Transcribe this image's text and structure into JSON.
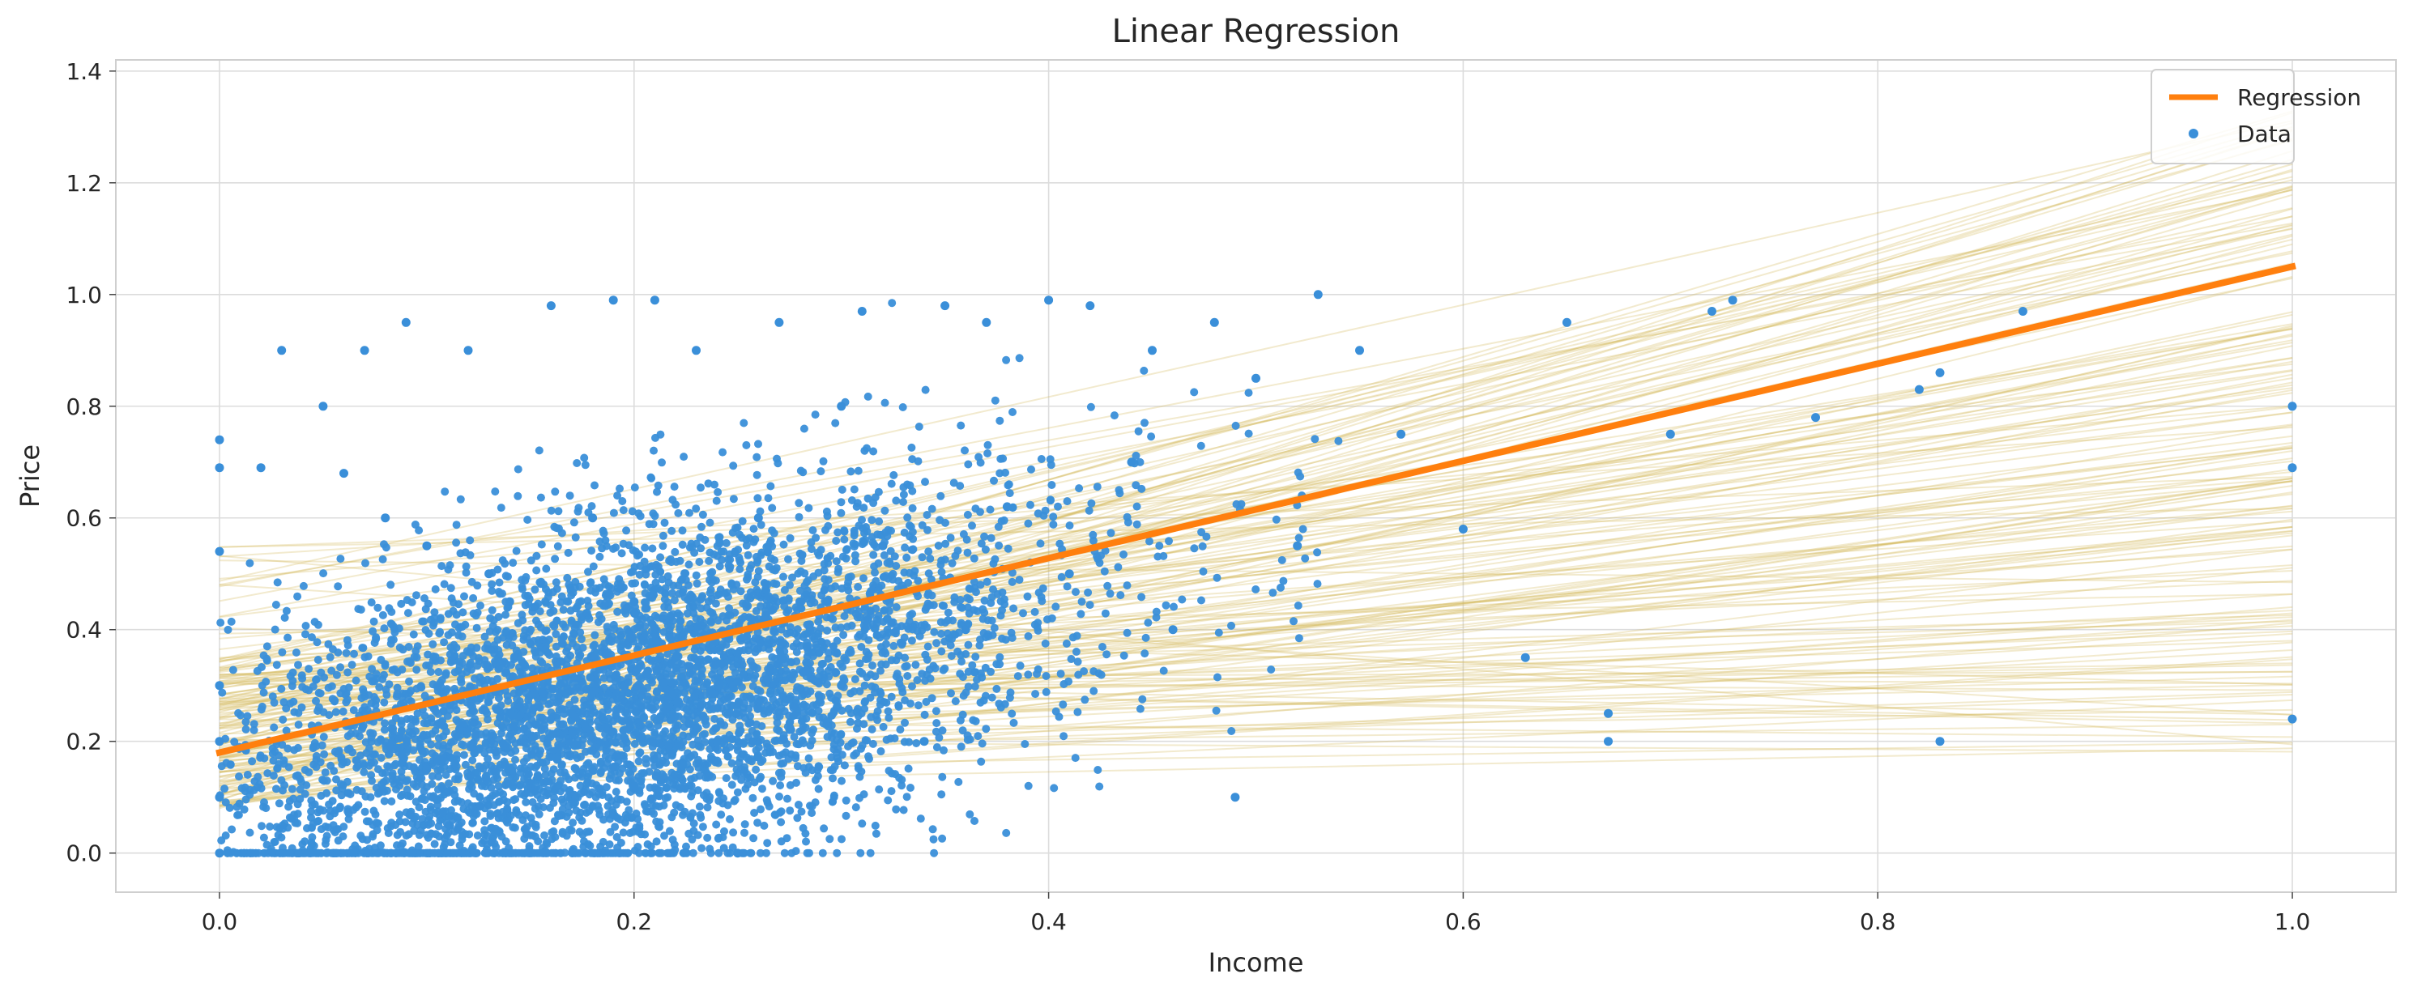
{
  "chart_data": {
    "type": "scatter",
    "title": "Linear Regression",
    "xlabel": "Income",
    "ylabel": "Price",
    "xlim": [
      -0.05,
      1.05
    ],
    "ylim": [
      -0.07,
      1.42
    ],
    "x_ticks": [
      "0.0",
      "0.2",
      "0.4",
      "0.6",
      "0.8",
      "1.0"
    ],
    "y_ticks": [
      "0.0",
      "0.2",
      "0.4",
      "0.6",
      "0.8",
      "1.0",
      "1.2",
      "1.4"
    ],
    "grid": true,
    "legend_placement": "top-right",
    "colors": {
      "data": "#3a8fd9",
      "regression": "#ff7f0e",
      "samples": "#d4b95e",
      "grid": "#dcdcdc",
      "frame": "#cfcfcf"
    },
    "series": [
      {
        "name": "Regression",
        "kind": "line",
        "x": [
          0.0,
          1.0
        ],
        "y": [
          0.18,
          1.05
        ]
      },
      {
        "name": "Data",
        "kind": "scatter",
        "x": [
          0.0,
          0.0,
          0.0,
          0.0,
          0.0,
          0.0,
          0.0,
          0.02,
          0.03,
          0.05,
          0.06,
          0.07,
          0.08,
          0.09,
          0.1,
          0.1,
          0.12,
          0.13,
          0.14,
          0.15,
          0.16,
          0.17,
          0.18,
          0.19,
          0.2,
          0.2,
          0.21,
          0.22,
          0.23,
          0.24,
          0.25,
          0.26,
          0.27,
          0.28,
          0.3,
          0.3,
          0.31,
          0.32,
          0.34,
          0.35,
          0.36,
          0.37,
          0.38,
          0.4,
          0.41,
          0.42,
          0.44,
          0.45,
          0.46,
          0.48,
          0.49,
          0.5,
          0.52,
          0.53,
          0.55,
          0.57,
          0.6,
          0.63,
          0.65,
          0.67,
          0.67,
          0.7,
          0.72,
          0.73,
          0.77,
          0.82,
          0.83,
          0.83,
          0.87,
          1.0,
          1.0,
          1.0
        ],
        "y": [
          0.3,
          0.2,
          0.1,
          0.74,
          0.69,
          0.54,
          0.0,
          0.69,
          0.9,
          0.8,
          0.68,
          0.9,
          0.6,
          0.95,
          0.55,
          0.15,
          0.9,
          0.5,
          0.45,
          0.3,
          0.98,
          0.25,
          0.6,
          0.99,
          0.45,
          0.12,
          0.99,
          0.35,
          0.9,
          0.2,
          0.0,
          0.6,
          0.95,
          0.45,
          0.8,
          0.3,
          0.97,
          0.55,
          0.2,
          0.98,
          0.4,
          0.95,
          0.62,
          0.99,
          0.5,
          0.98,
          0.7,
          0.9,
          0.4,
          0.95,
          0.1,
          0.85,
          0.55,
          1.0,
          0.9,
          0.75,
          0.58,
          0.35,
          0.95,
          0.25,
          0.2,
          0.75,
          0.97,
          0.99,
          0.78,
          0.83,
          0.2,
          0.86,
          0.97,
          0.8,
          0.69,
          0.24
        ]
      }
    ]
  }
}
